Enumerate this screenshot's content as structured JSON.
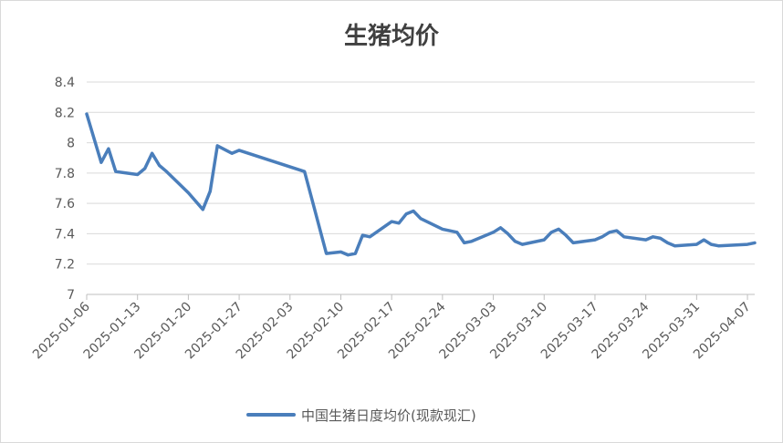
{
  "chart_data": {
    "type": "line",
    "title": "生猪均价",
    "xlabel": "",
    "ylabel": "",
    "ylim": [
      7,
      8.4
    ],
    "y_ticks": [
      "7",
      "7.2",
      "7.4",
      "7.6",
      "7.8",
      "8",
      "8.2",
      "8.4"
    ],
    "x_range": [
      "2025-01-06",
      "2025-04-08"
    ],
    "x_ticks": [
      "2025-01-06",
      "2025-01-13",
      "2025-01-20",
      "2025-01-27",
      "2025-02-03",
      "2025-02-10",
      "2025-02-17",
      "2025-02-24",
      "2025-03-03",
      "2025-03-10",
      "2025-03-17",
      "2025-03-24",
      "2025-03-31",
      "2025-04-07"
    ],
    "grid": "horizontal",
    "legend_position": "bottom",
    "series": [
      {
        "name": "中国生猪日度均价(现款现汇)",
        "color": "#4a7ebb",
        "points": [
          [
            "2025-01-06",
            8.19
          ],
          [
            "2025-01-08",
            7.87
          ],
          [
            "2025-01-09",
            7.96
          ],
          [
            "2025-01-10",
            7.81
          ],
          [
            "2025-01-13",
            7.79
          ],
          [
            "2025-01-14",
            7.83
          ],
          [
            "2025-01-15",
            7.93
          ],
          [
            "2025-01-16",
            7.85
          ],
          [
            "2025-01-17",
            7.81
          ],
          [
            "2025-01-20",
            7.67
          ],
          [
            "2025-01-22",
            7.56
          ],
          [
            "2025-01-23",
            7.68
          ],
          [
            "2025-01-24",
            7.98
          ],
          [
            "2025-01-26",
            7.93
          ],
          [
            "2025-01-27",
            7.95
          ],
          [
            "2025-02-05",
            7.81
          ],
          [
            "2025-02-06",
            7.63
          ],
          [
            "2025-02-08",
            7.27
          ],
          [
            "2025-02-10",
            7.28
          ],
          [
            "2025-02-11",
            7.26
          ],
          [
            "2025-02-12",
            7.27
          ],
          [
            "2025-02-13",
            7.39
          ],
          [
            "2025-02-14",
            7.38
          ],
          [
            "2025-02-17",
            7.48
          ],
          [
            "2025-02-18",
            7.47
          ],
          [
            "2025-02-19",
            7.53
          ],
          [
            "2025-02-20",
            7.55
          ],
          [
            "2025-02-21",
            7.5
          ],
          [
            "2025-02-24",
            7.43
          ],
          [
            "2025-02-26",
            7.41
          ],
          [
            "2025-02-27",
            7.34
          ],
          [
            "2025-02-28",
            7.35
          ],
          [
            "2025-03-03",
            7.41
          ],
          [
            "2025-03-04",
            7.44
          ],
          [
            "2025-03-05",
            7.4
          ],
          [
            "2025-03-06",
            7.35
          ],
          [
            "2025-03-07",
            7.33
          ],
          [
            "2025-03-10",
            7.36
          ],
          [
            "2025-03-11",
            7.41
          ],
          [
            "2025-03-12",
            7.43
          ],
          [
            "2025-03-13",
            7.39
          ],
          [
            "2025-03-14",
            7.34
          ],
          [
            "2025-03-17",
            7.36
          ],
          [
            "2025-03-18",
            7.38
          ],
          [
            "2025-03-19",
            7.41
          ],
          [
            "2025-03-20",
            7.42
          ],
          [
            "2025-03-21",
            7.38
          ],
          [
            "2025-03-24",
            7.36
          ],
          [
            "2025-03-25",
            7.38
          ],
          [
            "2025-03-26",
            7.37
          ],
          [
            "2025-03-27",
            7.34
          ],
          [
            "2025-03-28",
            7.32
          ],
          [
            "2025-03-31",
            7.33
          ],
          [
            "2025-04-01",
            7.36
          ],
          [
            "2025-04-02",
            7.33
          ],
          [
            "2025-04-03",
            7.32
          ],
          [
            "2025-04-07",
            7.33
          ],
          [
            "2025-04-08",
            7.34
          ]
        ]
      }
    ]
  }
}
